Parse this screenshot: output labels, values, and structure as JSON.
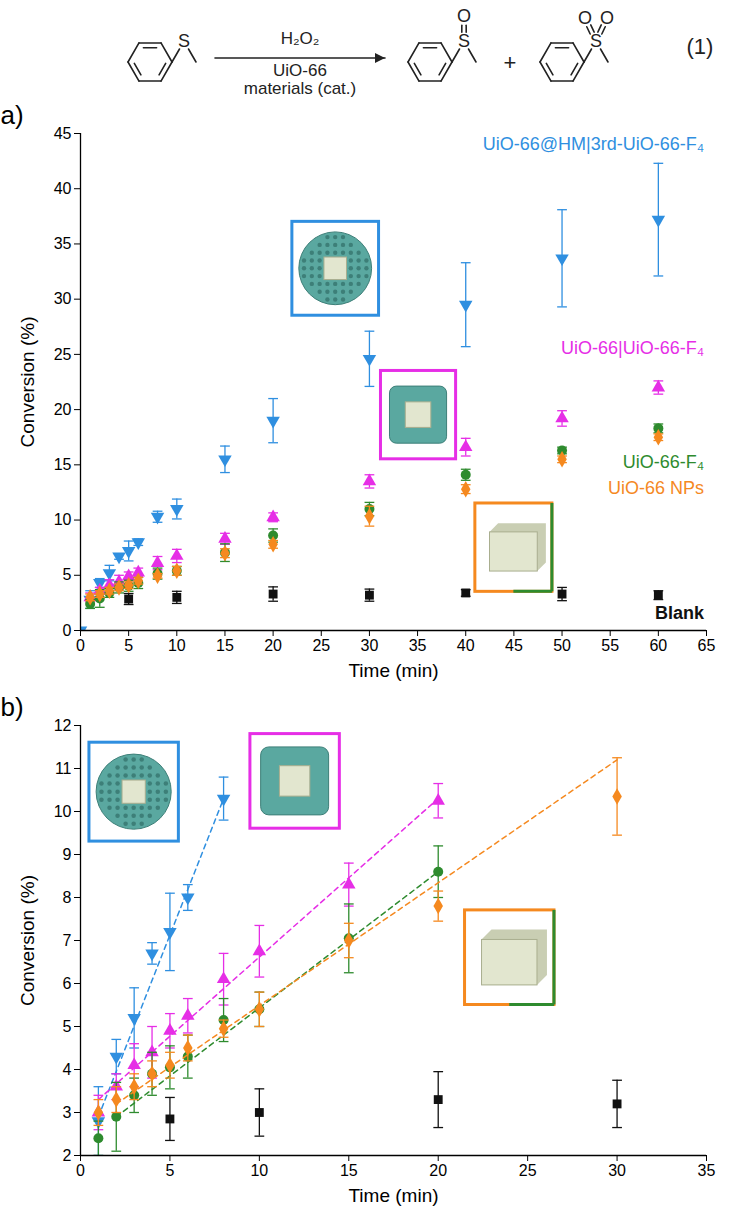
{
  "scheme": {
    "reactant_atoms": [
      "S"
    ],
    "reagent": "H₂O₂",
    "catalyst": [
      "UiO-66",
      "materials (cat.)"
    ],
    "product_atoms": [
      [
        "S",
        "O"
      ],
      [
        "S",
        "O",
        "O"
      ]
    ],
    "plus": "+",
    "equation_number": "(1)"
  },
  "chart_data": [
    {
      "type": "scatter",
      "panel_label": "a)",
      "xlabel": "Time (min)",
      "ylabel": "Conversion (%)",
      "xlim": [
        0,
        65
      ],
      "ylim": [
        0,
        45
      ],
      "xticks": [
        0,
        5,
        10,
        15,
        20,
        25,
        30,
        35,
        40,
        45,
        50,
        55,
        60,
        65
      ],
      "yticks": [
        0,
        5,
        10,
        15,
        20,
        25,
        30,
        35,
        40,
        45
      ],
      "grid": false,
      "series": [
        {
          "name": "UiO-66@HM|3rd-UiO-66-F₄",
          "color": "#2f8fe0",
          "marker": "triangle-down",
          "x": [
            0,
            1,
            2,
            3,
            4,
            5,
            6,
            8,
            10,
            15,
            20,
            30,
            40,
            50,
            60
          ],
          "values": [
            0,
            2.8,
            4.3,
            5.2,
            6.7,
            7.2,
            8.0,
            10.3,
            11.0,
            15.5,
            19.0,
            24.6,
            29.5,
            33.7,
            37.2
          ],
          "errors": [
            0,
            0.8,
            0.4,
            0.7,
            0.25,
            0.9,
            0.3,
            0.5,
            0.9,
            1.2,
            2.0,
            2.5,
            3.8,
            4.4,
            5.1
          ]
        },
        {
          "name": "UiO-66|UiO-66-F₄",
          "color": "#e62ee6",
          "marker": "triangle-up",
          "x": [
            1,
            2,
            3,
            4,
            5,
            6,
            8,
            10,
            15,
            20,
            30,
            40,
            50,
            60
          ],
          "values": [
            3.0,
            3.6,
            4.1,
            4.4,
            4.9,
            5.25,
            6.1,
            6.75,
            8.3,
            10.25,
            13.5,
            16.6,
            19.2,
            22.0
          ],
          "errors": [
            0.4,
            0.3,
            0.5,
            0.6,
            0.4,
            0.4,
            0.6,
            0.6,
            0.5,
            0.4,
            0.6,
            0.8,
            0.7,
            0.6
          ]
        },
        {
          "name": "UiO-66-F₄",
          "color": "#2e8b2e",
          "marker": "circle",
          "x": [
            1,
            2,
            3,
            4,
            5,
            6,
            8,
            10,
            15,
            20,
            30,
            40,
            50,
            60
          ],
          "values": [
            2.4,
            2.9,
            3.4,
            3.9,
            4.05,
            4.3,
            5.15,
            5.4,
            7.05,
            8.6,
            11.0,
            14.1,
            16.3,
            18.3
          ],
          "errors": [
            0.4,
            0.8,
            0.4,
            0.5,
            0.5,
            0.5,
            0.5,
            0.4,
            0.8,
            0.6,
            0.6,
            0.5,
            0.3,
            0.4
          ]
        },
        {
          "name": "UiO-66 NPs",
          "color": "#f5891f",
          "marker": "diamond",
          "x": [
            1,
            2,
            3,
            4,
            5,
            6,
            8,
            10,
            15,
            20,
            30,
            40,
            50,
            60
          ],
          "values": [
            3.0,
            3.3,
            3.6,
            3.9,
            4.1,
            4.5,
            4.95,
            5.4,
            7.0,
            7.8,
            10.35,
            12.8,
            15.5,
            17.5
          ],
          "errors": [
            0.3,
            0.3,
            0.3,
            0.3,
            0.3,
            0.3,
            0.2,
            0.4,
            0.4,
            0.35,
            0.9,
            0.4,
            0.3,
            0.3
          ]
        },
        {
          "name": "Blank",
          "color": "#111111",
          "marker": "square",
          "x": [
            5,
            10,
            20,
            30,
            40,
            50,
            60
          ],
          "values": [
            2.85,
            3.0,
            3.3,
            3.2,
            3.4,
            3.3,
            3.2
          ],
          "errors": [
            0.5,
            0.55,
            0.65,
            0.55,
            0.3,
            0.6,
            0.4
          ]
        }
      ]
    },
    {
      "type": "scatter",
      "panel_label": "b)",
      "xlabel": "Time (min)",
      "ylabel": "Conversion (%)",
      "xlim": [
        0,
        35
      ],
      "ylim": [
        2,
        12
      ],
      "xticks": [
        0,
        5,
        10,
        15,
        20,
        25,
        30,
        35
      ],
      "yticks": [
        2,
        3,
        4,
        5,
        6,
        7,
        8,
        9,
        10,
        11,
        12
      ],
      "grid": false,
      "series": [
        {
          "color": "#2f8fe0",
          "marker": "triangle-down",
          "line_style": "dashed",
          "x": [
            1,
            2,
            3,
            4,
            5,
            6,
            8
          ],
          "values": [
            2.8,
            4.3,
            5.2,
            6.7,
            7.2,
            8.0,
            10.3
          ],
          "errors": [
            0.8,
            0.4,
            0.7,
            0.25,
            0.9,
            0.3,
            0.5
          ],
          "fit_x": [
            1,
            8
          ],
          "fit_values": [
            2.9,
            10.3
          ]
        },
        {
          "color": "#e62ee6",
          "marker": "triangle-up",
          "line_style": "dashed",
          "x": [
            1,
            2,
            3,
            4,
            5,
            6,
            8,
            10,
            15,
            20
          ],
          "values": [
            3.0,
            3.6,
            4.1,
            4.4,
            4.9,
            5.25,
            6.1,
            6.75,
            8.3,
            10.25
          ],
          "errors": [
            0.4,
            0.3,
            0.5,
            0.6,
            0.4,
            0.4,
            0.6,
            0.6,
            0.5,
            0.4
          ],
          "fit_x": [
            1,
            20
          ],
          "fit_values": [
            3.3,
            10.3
          ]
        },
        {
          "color": "#2e8b2e",
          "marker": "circle",
          "line_style": "dashed",
          "x": [
            1,
            2,
            3,
            4,
            5,
            6,
            8,
            10,
            15,
            20
          ],
          "values": [
            2.4,
            2.9,
            3.4,
            3.9,
            4.05,
            4.3,
            5.15,
            5.4,
            7.05,
            8.6
          ],
          "errors": [
            0.4,
            0.8,
            0.4,
            0.5,
            0.5,
            0.5,
            0.5,
            0.4,
            0.8,
            0.6
          ],
          "fit_x": [
            2,
            20
          ],
          "fit_values": [
            2.9,
            8.6
          ]
        },
        {
          "color": "#f5891f",
          "marker": "diamond",
          "line_style": "dashed",
          "x": [
            1,
            2,
            3,
            4,
            5,
            6,
            8,
            10,
            15,
            20,
            30
          ],
          "values": [
            3.0,
            3.3,
            3.6,
            3.9,
            4.1,
            4.5,
            4.95,
            5.4,
            7.0,
            7.8,
            10.35
          ],
          "errors": [
            0.3,
            0.3,
            0.3,
            0.3,
            0.3,
            0.3,
            0.2,
            0.4,
            0.4,
            0.35,
            0.9
          ],
          "fit_x": [
            2,
            30
          ],
          "fit_values": [
            3.2,
            11.2
          ]
        },
        {
          "color": "#111111",
          "marker": "square",
          "x": [
            5,
            10,
            20,
            30
          ],
          "values": [
            2.85,
            3.0,
            3.3,
            3.2
          ],
          "errors": [
            0.5,
            0.55,
            0.65,
            0.55
          ]
        }
      ]
    }
  ]
}
